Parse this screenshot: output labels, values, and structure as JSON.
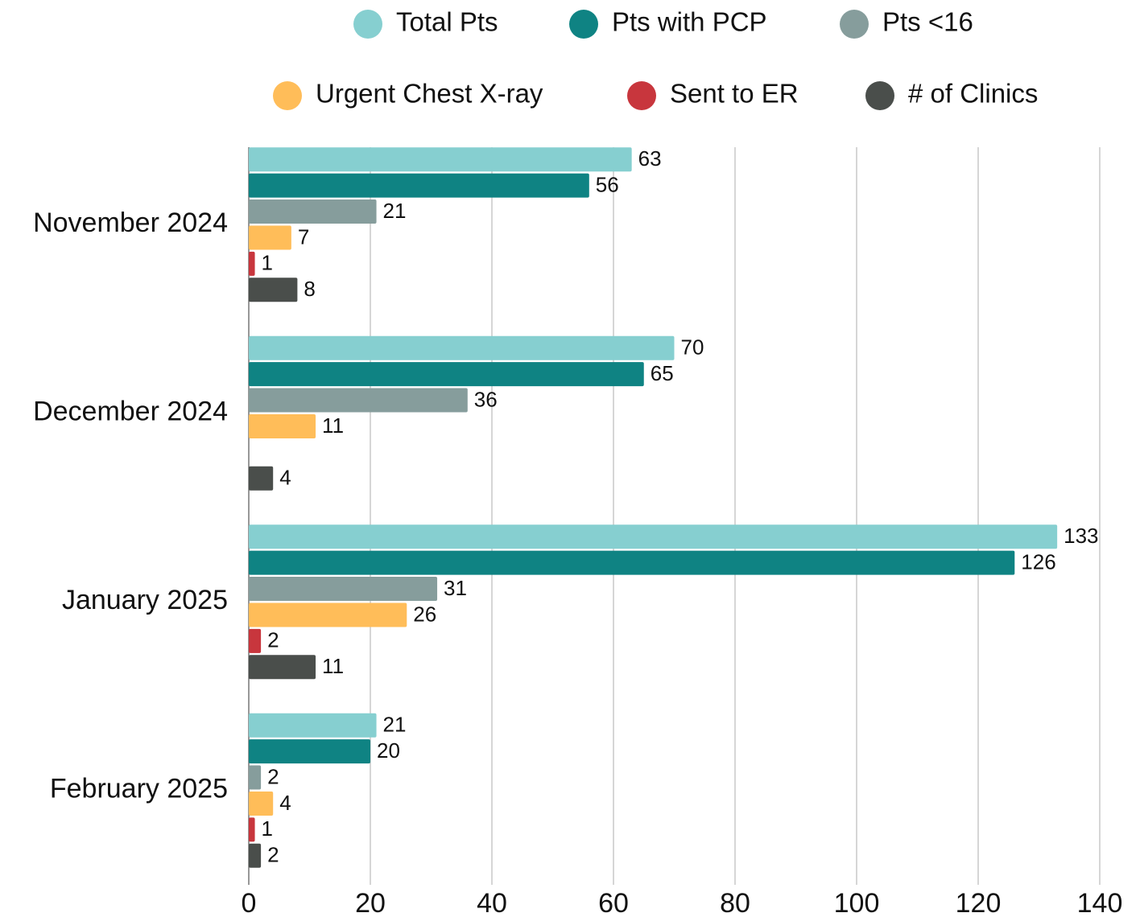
{
  "chart_data": {
    "type": "bar",
    "orientation": "horizontal",
    "categories": [
      "November 2024",
      "December 2024",
      "January 2025",
      "February 2025"
    ],
    "series": [
      {
        "name": "Total Pts",
        "color": "#86cfd0",
        "values": [
          63,
          70,
          133,
          21
        ]
      },
      {
        "name": "Pts with PCP",
        "color": "#0f8383",
        "values": [
          56,
          65,
          126,
          20
        ]
      },
      {
        "name": "Pts <16",
        "color": "#869d9c",
        "values": [
          21,
          36,
          31,
          2
        ]
      },
      {
        "name": "Urgent Chest X-ray",
        "color": "#ffbd59",
        "values": [
          7,
          11,
          26,
          4
        ]
      },
      {
        "name": "Sent to ER",
        "color": "#c8363d",
        "values": [
          1,
          null,
          2,
          1
        ]
      },
      {
        "name": "# of Clinics",
        "color": "#4a4e4b",
        "values": [
          8,
          4,
          11,
          2
        ]
      }
    ],
    "xlim": [
      0,
      140
    ],
    "xticks": [
      0,
      20,
      40,
      60,
      80,
      100,
      120,
      140
    ],
    "grid": true,
    "legend": "top"
  }
}
